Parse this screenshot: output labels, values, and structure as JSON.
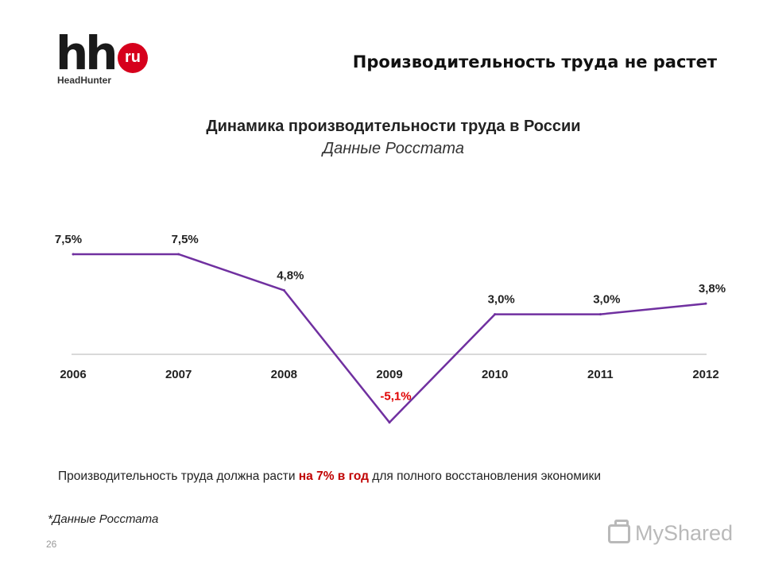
{
  "logo": {
    "main": "hh",
    "badge": "ru",
    "sub": "HeadHunter"
  },
  "slide_title": "Производительность труда не растет",
  "chart_data": {
    "type": "line",
    "title": "Динамика производительности труда в России",
    "subtitle": "Данные Росстата",
    "categories": [
      "2006",
      "2007",
      "2008",
      "2009",
      "2010",
      "2011",
      "2012"
    ],
    "series": [
      {
        "values": [
          7.5,
          7.5,
          4.8,
          -5.1,
          3.0,
          3.0,
          3.8
        ]
      }
    ],
    "data_labels": [
      "7,5%",
      "7,5%",
      "4,8%",
      "-5,1%",
      "3,0%",
      "3,0%",
      "3,8%"
    ],
    "line_color": "#7030a0",
    "negative_label_color": "#e00000",
    "ylim": [
      -6,
      8
    ],
    "grid": false,
    "legend": "none"
  },
  "footnote": {
    "before": "Производительность  труда должна расти ",
    "highlight": "на 7% в год",
    "after": " для полного восстановления  экономики"
  },
  "source_note": "*Данные Росстата",
  "page_number": "26",
  "watermark": "MyShared"
}
